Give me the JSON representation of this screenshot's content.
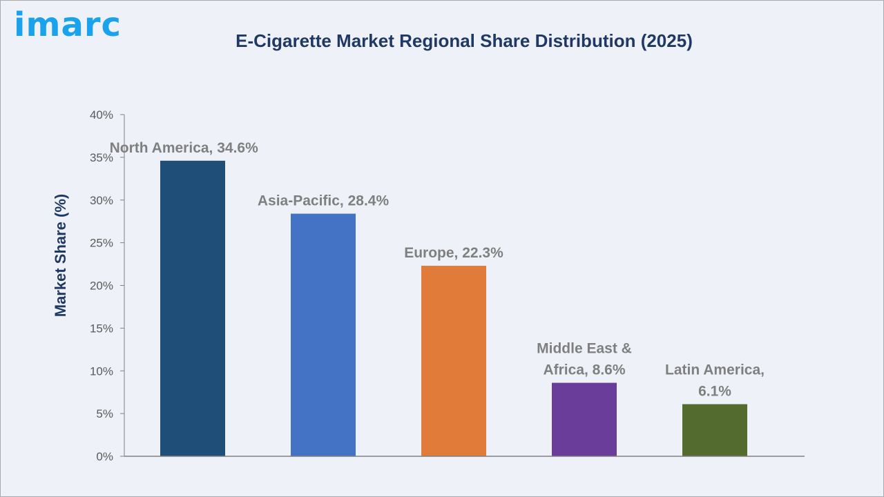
{
  "logo": "imarc",
  "chart_data": {
    "type": "bar",
    "title": "E-Cigarette Market Regional Share Distribution (2025)",
    "xlabel": "",
    "ylabel": "Market Share (%)",
    "ylim": [
      0,
      40
    ],
    "yticks": [
      "0%",
      "5%",
      "10%",
      "15%",
      "20%",
      "25%",
      "30%",
      "35%",
      "40%"
    ],
    "grid": false,
    "categories": [
      "North America",
      "Asia-Pacific",
      "Europe",
      "Middle East & Africa",
      "Latin America"
    ],
    "values": [
      34.6,
      28.4,
      22.3,
      8.6,
      6.1
    ],
    "data_labels": [
      [
        "North America, 34.6%"
      ],
      [
        "Asia-Pacific, 28.4%"
      ],
      [
        "Europe, 22.3%"
      ],
      [
        "Middle East &",
        "Africa, 8.6%"
      ],
      [
        "Latin America,",
        "6.1%"
      ]
    ],
    "colors": [
      "#1f4e79",
      "#4472c4",
      "#e07b39",
      "#6a3d9a",
      "#546b2f"
    ]
  }
}
